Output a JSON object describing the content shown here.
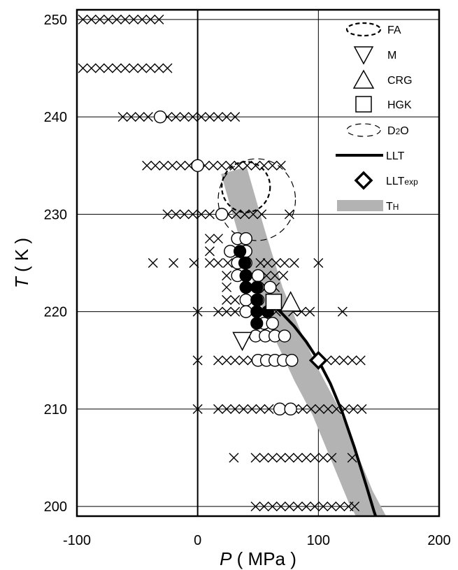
{
  "chart_data": {
    "type": "scatter",
    "x_axis": {
      "label_italic": "P",
      "label_rest": " ( MPa )",
      "range": [
        -100,
        200
      ],
      "ticks": [
        "-100",
        "0",
        "100",
        "200"
      ]
    },
    "y_axis": {
      "label_italic": "T",
      "label_rest": " ( K )",
      "range": [
        199,
        251
      ],
      "ticks": [
        "200",
        "210",
        "220",
        "230",
        "240",
        "250"
      ]
    },
    "grid_x": [
      0,
      100
    ],
    "grid_y": [
      200,
      210,
      220,
      230,
      240,
      250
    ],
    "legend": [
      {
        "key": "FA",
        "text": "FA"
      },
      {
        "key": "M",
        "text": "M"
      },
      {
        "key": "CRG",
        "text": "CRG"
      },
      {
        "key": "HGK",
        "text": "HGK"
      },
      {
        "key": "D2O",
        "text": "D",
        "sub": "2",
        "text2": "O"
      },
      {
        "key": "LLT",
        "text": "LLT"
      },
      {
        "key": "LLTexp",
        "text": "LLT",
        "sub": "exp"
      },
      {
        "key": "TH",
        "text": "T",
        "sub": "H"
      }
    ],
    "x_marks": [
      [
        -95,
        250
      ],
      [
        -88,
        250
      ],
      [
        -81,
        250
      ],
      [
        -74,
        250
      ],
      [
        -67,
        250
      ],
      [
        -60,
        250
      ],
      [
        -53,
        250
      ],
      [
        -46,
        250
      ],
      [
        -39,
        250
      ],
      [
        -32,
        250
      ],
      [
        -95,
        245
      ],
      [
        -88,
        245
      ],
      [
        -81,
        245
      ],
      [
        -74,
        245
      ],
      [
        -67,
        245
      ],
      [
        -60,
        245
      ],
      [
        -53,
        245
      ],
      [
        -46,
        245
      ],
      [
        -39,
        245
      ],
      [
        -32,
        245
      ],
      [
        -25,
        245
      ],
      [
        -62,
        240
      ],
      [
        -55,
        240
      ],
      [
        -48,
        240
      ],
      [
        -41,
        240
      ],
      [
        -25,
        240
      ],
      [
        -18,
        240
      ],
      [
        -11,
        240
      ],
      [
        -4,
        240
      ],
      [
        3,
        240
      ],
      [
        10,
        240
      ],
      [
        17,
        240
      ],
      [
        24,
        240
      ],
      [
        31,
        240
      ],
      [
        -42,
        235
      ],
      [
        -35,
        235
      ],
      [
        -28,
        235
      ],
      [
        -21,
        235
      ],
      [
        -14,
        235
      ],
      [
        -7,
        235
      ],
      [
        6,
        235
      ],
      [
        13,
        235
      ],
      [
        20,
        235
      ],
      [
        27,
        235
      ],
      [
        34,
        235
      ],
      [
        41,
        235
      ],
      [
        48,
        235
      ],
      [
        55,
        235
      ],
      [
        62,
        235
      ],
      [
        69,
        235
      ],
      [
        -25,
        230
      ],
      [
        -18,
        230
      ],
      [
        -11,
        230
      ],
      [
        -4,
        230
      ],
      [
        3,
        230
      ],
      [
        10,
        230
      ],
      [
        25,
        230
      ],
      [
        32,
        230
      ],
      [
        39,
        230
      ],
      [
        46,
        230
      ],
      [
        53,
        230
      ],
      [
        76,
        230
      ],
      [
        10,
        227.5
      ],
      [
        17,
        227.5
      ],
      [
        10,
        226.2
      ],
      [
        -37,
        225
      ],
      [
        -20,
        225
      ],
      [
        -3,
        225
      ],
      [
        10,
        225
      ],
      [
        17,
        225
      ],
      [
        25,
        225
      ],
      [
        52,
        225
      ],
      [
        58,
        225
      ],
      [
        65,
        225
      ],
      [
        72,
        225
      ],
      [
        80,
        225
      ],
      [
        100,
        225
      ],
      [
        24,
        223.7
      ],
      [
        57,
        223.7
      ],
      [
        64,
        223.7
      ],
      [
        71,
        223.7
      ],
      [
        24,
        222.5
      ],
      [
        57,
        222.5
      ],
      [
        64,
        222.5
      ],
      [
        24,
        221.2
      ],
      [
        31,
        221.2
      ],
      [
        0,
        220
      ],
      [
        17,
        220
      ],
      [
        24,
        220
      ],
      [
        31,
        220
      ],
      [
        65,
        220
      ],
      [
        79,
        220
      ],
      [
        86,
        220
      ],
      [
        93,
        220
      ],
      [
        120,
        220
      ],
      [
        0,
        215
      ],
      [
        17,
        215
      ],
      [
        24,
        215
      ],
      [
        31,
        215
      ],
      [
        38,
        215
      ],
      [
        45,
        215
      ],
      [
        107,
        215
      ],
      [
        114,
        215
      ],
      [
        121,
        215
      ],
      [
        128,
        215
      ],
      [
        135,
        215
      ],
      [
        0,
        210
      ],
      [
        17,
        210
      ],
      [
        24,
        210
      ],
      [
        31,
        210
      ],
      [
        38,
        210
      ],
      [
        45,
        210
      ],
      [
        52,
        210
      ],
      [
        59,
        210
      ],
      [
        80,
        210
      ],
      [
        87,
        210
      ],
      [
        94,
        210
      ],
      [
        101,
        210
      ],
      [
        108,
        210
      ],
      [
        115,
        210
      ],
      [
        122,
        210
      ],
      [
        129,
        210
      ],
      [
        136,
        210
      ],
      [
        30,
        205
      ],
      [
        48,
        205
      ],
      [
        55,
        205
      ],
      [
        62,
        205
      ],
      [
        69,
        205
      ],
      [
        76,
        205
      ],
      [
        83,
        205
      ],
      [
        90,
        205
      ],
      [
        97,
        205
      ],
      [
        104,
        205
      ],
      [
        111,
        205
      ],
      [
        128,
        205
      ],
      [
        48,
        200
      ],
      [
        55,
        200
      ],
      [
        62,
        200
      ],
      [
        69,
        200
      ],
      [
        76,
        200
      ],
      [
        83,
        200
      ],
      [
        90,
        200
      ],
      [
        97,
        200
      ],
      [
        104,
        200
      ],
      [
        111,
        200
      ],
      [
        118,
        200
      ],
      [
        125,
        200
      ],
      [
        130,
        200
      ]
    ],
    "open_circles": [
      [
        -31,
        240
      ],
      [
        0,
        235
      ],
      [
        20,
        230
      ],
      [
        33,
        227.5
      ],
      [
        40,
        227.5
      ],
      [
        27,
        226.2
      ],
      [
        40,
        226.2
      ],
      [
        33,
        225
      ],
      [
        40,
        225
      ],
      [
        33,
        223.7
      ],
      [
        40,
        223.7
      ],
      [
        50,
        223.7
      ],
      [
        40,
        222.5
      ],
      [
        50,
        222.5
      ],
      [
        60,
        222.5
      ],
      [
        40,
        221.2
      ],
      [
        50,
        221.2
      ],
      [
        40,
        220
      ],
      [
        48,
        217.5
      ],
      [
        56,
        217.5
      ],
      [
        64,
        217.5
      ],
      [
        72,
        217.5
      ],
      [
        55,
        218.8
      ],
      [
        62,
        218.8
      ],
      [
        50,
        215
      ],
      [
        57,
        215
      ],
      [
        64,
        215
      ],
      [
        71,
        215
      ],
      [
        78,
        215
      ],
      [
        68,
        210
      ],
      [
        77,
        210
      ]
    ],
    "filled_circles": [
      [
        35,
        226.2
      ],
      [
        39,
        225
      ],
      [
        40,
        223.7
      ],
      [
        40,
        222.5
      ],
      [
        49,
        222.5
      ],
      [
        49,
        221.2
      ],
      [
        49,
        220
      ],
      [
        49,
        218.8
      ],
      [
        58,
        220
      ]
    ],
    "FA_ellipse": {
      "cx": 40,
      "cy": 232.8,
      "rx": 20,
      "ry": 2.6
    },
    "D2O_ellipse": {
      "cx": 49,
      "cy": 231.5,
      "rx": 32,
      "ry": 4.2
    },
    "M_point": [
      37,
      217
    ],
    "CRG_point": [
      77,
      221
    ],
    "HGK_point": [
      63,
      221
    ],
    "LLTexp_point": [
      100,
      215
    ],
    "LLT_line": [
      [
        60,
        221
      ],
      [
        70,
        219.8
      ],
      [
        80,
        218.5
      ],
      [
        90,
        216.9
      ],
      [
        100,
        215
      ],
      [
        110,
        212.6
      ],
      [
        120,
        209.6
      ],
      [
        130,
        206
      ],
      [
        140,
        202
      ],
      [
        146,
        199.5
      ],
      [
        148,
        198.8
      ]
    ],
    "TH_band": [
      [
        30,
        234.5
      ],
      [
        45,
        228
      ],
      [
        60,
        222
      ],
      [
        75,
        217.5
      ],
      [
        90,
        213.5
      ],
      [
        105,
        210
      ],
      [
        120,
        205.5
      ],
      [
        135,
        201
      ],
      [
        150,
        197.5
      ],
      [
        160,
        196
      ]
    ]
  }
}
